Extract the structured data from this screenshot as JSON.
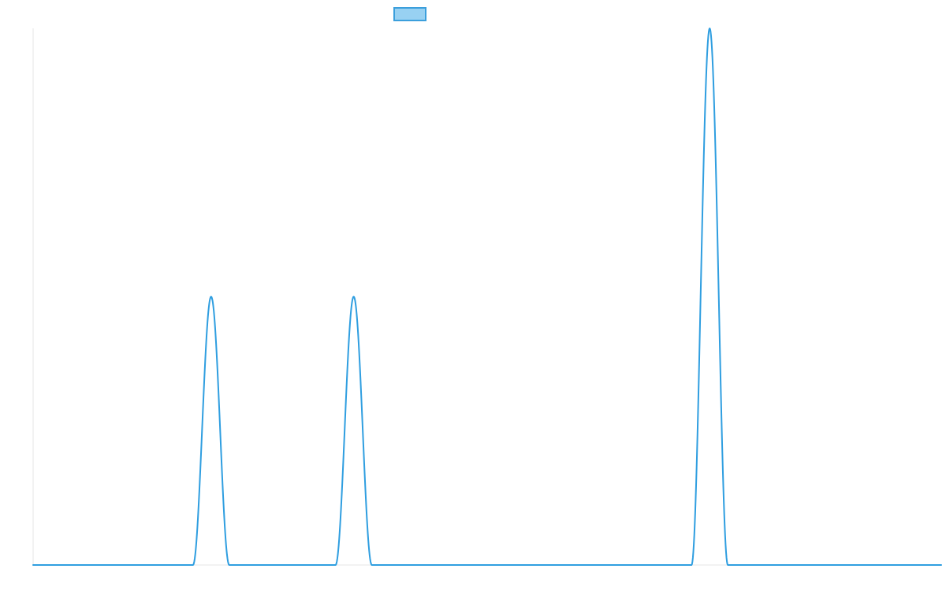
{
  "chart_data": {
    "type": "line",
    "title": "",
    "xlabel": "",
    "ylabel": "",
    "grid": false,
    "legend": {
      "position": "top-center",
      "entries": [
        {
          "name": "",
          "color": "#3b9fdc",
          "fill": "#98d1f2"
        }
      ]
    },
    "xlim": [
      0,
      1000
    ],
    "ylim": [
      0,
      1
    ],
    "series": [
      {
        "name": "",
        "color": "#2f9ee0",
        "peaks": [
          {
            "center": 196,
            "amplitude": 0.5,
            "half_width": 20
          },
          {
            "center": 353,
            "amplitude": 0.5,
            "half_width": 20
          },
          {
            "center": 745,
            "amplitude": 1.0,
            "half_width": 20
          }
        ],
        "x": [
          0,
          176,
          186,
          191,
          196,
          201,
          206,
          216,
          333,
          343,
          348,
          353,
          358,
          363,
          373,
          725,
          735,
          740,
          745,
          750,
          755,
          765,
          1000
        ],
        "y": [
          0,
          0,
          0.25,
          0.427,
          0.5,
          0.427,
          0.25,
          0,
          0,
          0.25,
          0.427,
          0.5,
          0.427,
          0.25,
          0,
          0,
          0.5,
          0.854,
          1.0,
          0.854,
          0.5,
          0,
          0
        ]
      }
    ]
  }
}
